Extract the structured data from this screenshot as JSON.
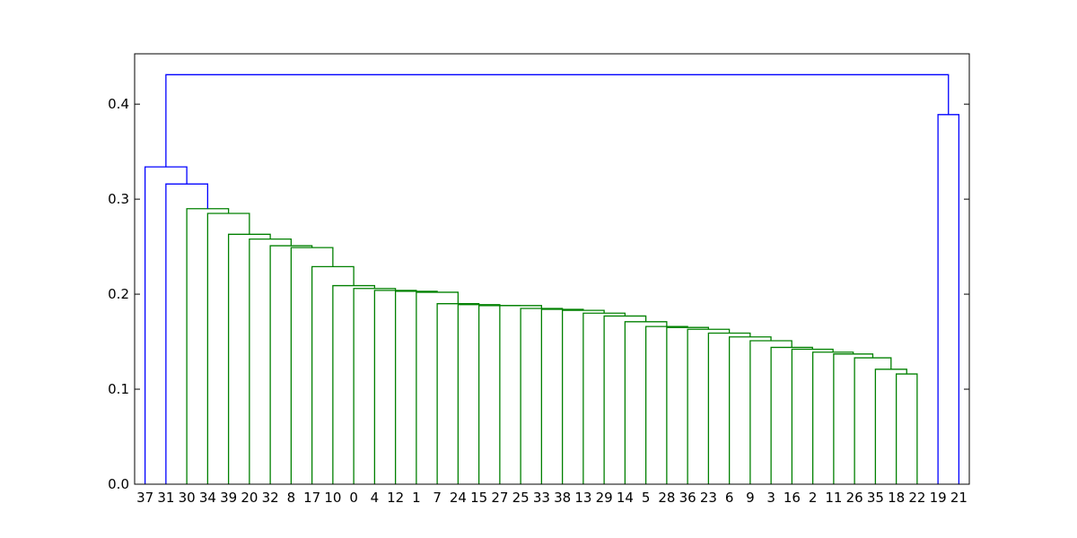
{
  "chart_data": {
    "type": "dendrogram",
    "title": "",
    "xlabel": "",
    "ylabel": "",
    "ylim": [
      0,
      0.453
    ],
    "yticks": [
      "0.0",
      "0.1",
      "0.2",
      "0.3",
      "0.4"
    ],
    "ytick_values": [
      0.0,
      0.1,
      0.2,
      0.3,
      0.4
    ],
    "grid": false,
    "colors": {
      "above_threshold": "#0000ff",
      "cluster": "#008000"
    },
    "leaves": [
      "37",
      "31",
      "30",
      "34",
      "39",
      "20",
      "32",
      "8",
      "17",
      "10",
      "0",
      "4",
      "12",
      "1",
      "7",
      "24",
      "15",
      "27",
      "25",
      "33",
      "38",
      "13",
      "29",
      "14",
      "5",
      "28",
      "36",
      "23",
      "6",
      "9",
      "3",
      "16",
      "2",
      "11",
      "26",
      "35",
      "18",
      "22",
      "19",
      "21"
    ],
    "merges": [
      {
        "left": "18",
        "right": "22",
        "height": 0.116,
        "color": "cluster"
      },
      {
        "left": "35",
        "right": "m0",
        "height": 0.121,
        "color": "cluster"
      },
      {
        "left": "26",
        "right": "m1",
        "height": 0.133,
        "color": "cluster"
      },
      {
        "left": "11",
        "right": "m2",
        "height": 0.137,
        "color": "cluster"
      },
      {
        "left": "2",
        "right": "m3",
        "height": 0.139,
        "color": "cluster"
      },
      {
        "left": "16",
        "right": "m4",
        "height": 0.142,
        "color": "cluster"
      },
      {
        "left": "3",
        "right": "m5",
        "height": 0.144,
        "color": "cluster"
      },
      {
        "left": "9",
        "right": "m6",
        "height": 0.151,
        "color": "cluster"
      },
      {
        "left": "6",
        "right": "m7",
        "height": 0.155,
        "color": "cluster"
      },
      {
        "left": "23",
        "right": "m8",
        "height": 0.159,
        "color": "cluster"
      },
      {
        "left": "36",
        "right": "m9",
        "height": 0.163,
        "color": "cluster"
      },
      {
        "left": "28",
        "right": "m10",
        "height": 0.165,
        "color": "cluster"
      },
      {
        "left": "5",
        "right": "m11",
        "height": 0.166,
        "color": "cluster"
      },
      {
        "left": "14",
        "right": "m12",
        "height": 0.171,
        "color": "cluster"
      },
      {
        "left": "29",
        "right": "m13",
        "height": 0.177,
        "color": "cluster"
      },
      {
        "left": "13",
        "right": "m14",
        "height": 0.18,
        "color": "cluster"
      },
      {
        "left": "38",
        "right": "m15",
        "height": 0.183,
        "color": "cluster"
      },
      {
        "left": "33",
        "right": "m16",
        "height": 0.184,
        "color": "cluster"
      },
      {
        "left": "25",
        "right": "m17",
        "height": 0.185,
        "color": "cluster"
      },
      {
        "left": "27",
        "right": "m18",
        "height": 0.188,
        "color": "cluster"
      },
      {
        "left": "15",
        "right": "m19",
        "height": 0.188,
        "color": "cluster"
      },
      {
        "left": "24",
        "right": "m20",
        "height": 0.189,
        "color": "cluster"
      },
      {
        "left": "7",
        "right": "m21",
        "height": 0.19,
        "color": "cluster"
      },
      {
        "left": "1",
        "right": "m22",
        "height": 0.202,
        "color": "cluster"
      },
      {
        "left": "12",
        "right": "m23",
        "height": 0.203,
        "color": "cluster"
      },
      {
        "left": "4",
        "right": "m24",
        "height": 0.204,
        "color": "cluster"
      },
      {
        "left": "0",
        "right": "m25",
        "height": 0.206,
        "color": "cluster"
      },
      {
        "left": "10",
        "right": "m26",
        "height": 0.209,
        "color": "cluster"
      },
      {
        "left": "17",
        "right": "m27",
        "height": 0.229,
        "color": "cluster"
      },
      {
        "left": "8",
        "right": "m28",
        "height": 0.249,
        "color": "cluster"
      },
      {
        "left": "32",
        "right": "m29",
        "height": 0.251,
        "color": "cluster"
      },
      {
        "left": "20",
        "right": "m30",
        "height": 0.258,
        "color": "cluster"
      },
      {
        "left": "39",
        "right": "m31",
        "height": 0.263,
        "color": "cluster"
      },
      {
        "left": "34",
        "right": "m32",
        "height": 0.285,
        "color": "cluster"
      },
      {
        "left": "30",
        "right": "m33",
        "height": 0.29,
        "color": "cluster"
      },
      {
        "left": "31",
        "right": "m34",
        "height": 0.316,
        "color": "above_threshold"
      },
      {
        "left": "37",
        "right": "m35",
        "height": 0.334,
        "color": "above_threshold"
      },
      {
        "left": "19",
        "right": "21",
        "height": 0.389,
        "color": "above_threshold"
      },
      {
        "left": "m36",
        "right": "m37",
        "height": 0.431,
        "color": "above_threshold"
      }
    ]
  }
}
